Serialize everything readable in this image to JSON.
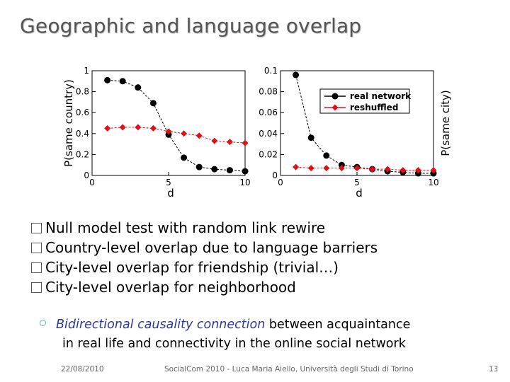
{
  "slide": {
    "title": "Geographic and language overlap",
    "bullets": [
      "Null model test with random link rewire",
      "Country-level overlap due to language barriers",
      "City-level overlap for friendship (trivial…)",
      "City-level overlap for neighborhood"
    ],
    "sub_bullet": {
      "emphasis": "Bidirectional causality connection",
      "rest_line1": " between acquaintance",
      "line2": "in real life and connectivity in the online social network"
    },
    "footer": {
      "date": "22/08/2010",
      "conference": "SocialCom 2010 - Luca Maria Aiello, Università degli Studi di Torino",
      "page": "13"
    }
  },
  "chart_data": [
    {
      "type": "line",
      "xlabel": "d",
      "ylabel": "P(same country)",
      "xlim": [
        0,
        10
      ],
      "ylim": [
        0,
        1
      ],
      "xticks": [
        {
          "v": 0,
          "label": "0"
        },
        {
          "v": 5,
          "label": "5"
        },
        {
          "v": 10,
          "label": "10"
        }
      ],
      "yticks": [
        {
          "v": 0,
          "label": "0"
        },
        {
          "v": 0.2,
          "label": "0.2"
        },
        {
          "v": 0.4,
          "label": "0.4"
        },
        {
          "v": 0.6,
          "label": "0.6"
        },
        {
          "v": 0.8,
          "label": "0.8"
        },
        {
          "v": 1,
          "label": "1"
        }
      ],
      "series": [
        {
          "name": "real network",
          "color": "#000000",
          "marker": "circle",
          "x": [
            1,
            2,
            3,
            4,
            5,
            6,
            7,
            8,
            9,
            10
          ],
          "y": [
            0.91,
            0.9,
            0.84,
            0.69,
            0.39,
            0.17,
            0.08,
            0.06,
            0.05,
            0.04
          ]
        },
        {
          "name": "reshuffled",
          "color": "#e0101a",
          "marker": "diamond",
          "x": [
            1,
            2,
            3,
            4,
            5,
            6,
            7,
            8,
            9,
            10
          ],
          "y": [
            0.45,
            0.46,
            0.46,
            0.45,
            0.42,
            0.4,
            0.38,
            0.33,
            0.32,
            0.31
          ]
        }
      ]
    },
    {
      "type": "line",
      "xlabel": "d",
      "ylabel": "P(same city)",
      "xlim": [
        0,
        10
      ],
      "ylim": [
        0,
        0.1
      ],
      "xticks": [
        {
          "v": 0,
          "label": "0"
        },
        {
          "v": 5,
          "label": "5"
        },
        {
          "v": 10,
          "label": "10"
        }
      ],
      "yticks": [
        {
          "v": 0,
          "label": "0"
        },
        {
          "v": 0.02,
          "label": "0.02"
        },
        {
          "v": 0.04,
          "label": "0.04"
        },
        {
          "v": 0.06,
          "label": "0.06"
        },
        {
          "v": 0.08,
          "label": "0.08"
        },
        {
          "v": 0.1,
          "label": "0.1"
        }
      ],
      "legend": {
        "position": "top-right",
        "entries": [
          "real network",
          "reshuffled"
        ]
      },
      "series": [
        {
          "name": "real network",
          "color": "#000000",
          "marker": "circle",
          "x": [
            1,
            2,
            3,
            4,
            5,
            6,
            7,
            8,
            9,
            10
          ],
          "y": [
            0.096,
            0.036,
            0.019,
            0.01,
            0.008,
            0.006,
            0.004,
            0.003,
            0.002,
            0.002
          ]
        },
        {
          "name": "reshuffled",
          "color": "#e0101a",
          "marker": "diamond",
          "x": [
            1,
            2,
            3,
            4,
            5,
            6,
            7,
            8,
            9,
            10
          ],
          "y": [
            0.008,
            0.007,
            0.007,
            0.007,
            0.007,
            0.006,
            0.006,
            0.005,
            0.005,
            0.005
          ]
        }
      ]
    }
  ]
}
